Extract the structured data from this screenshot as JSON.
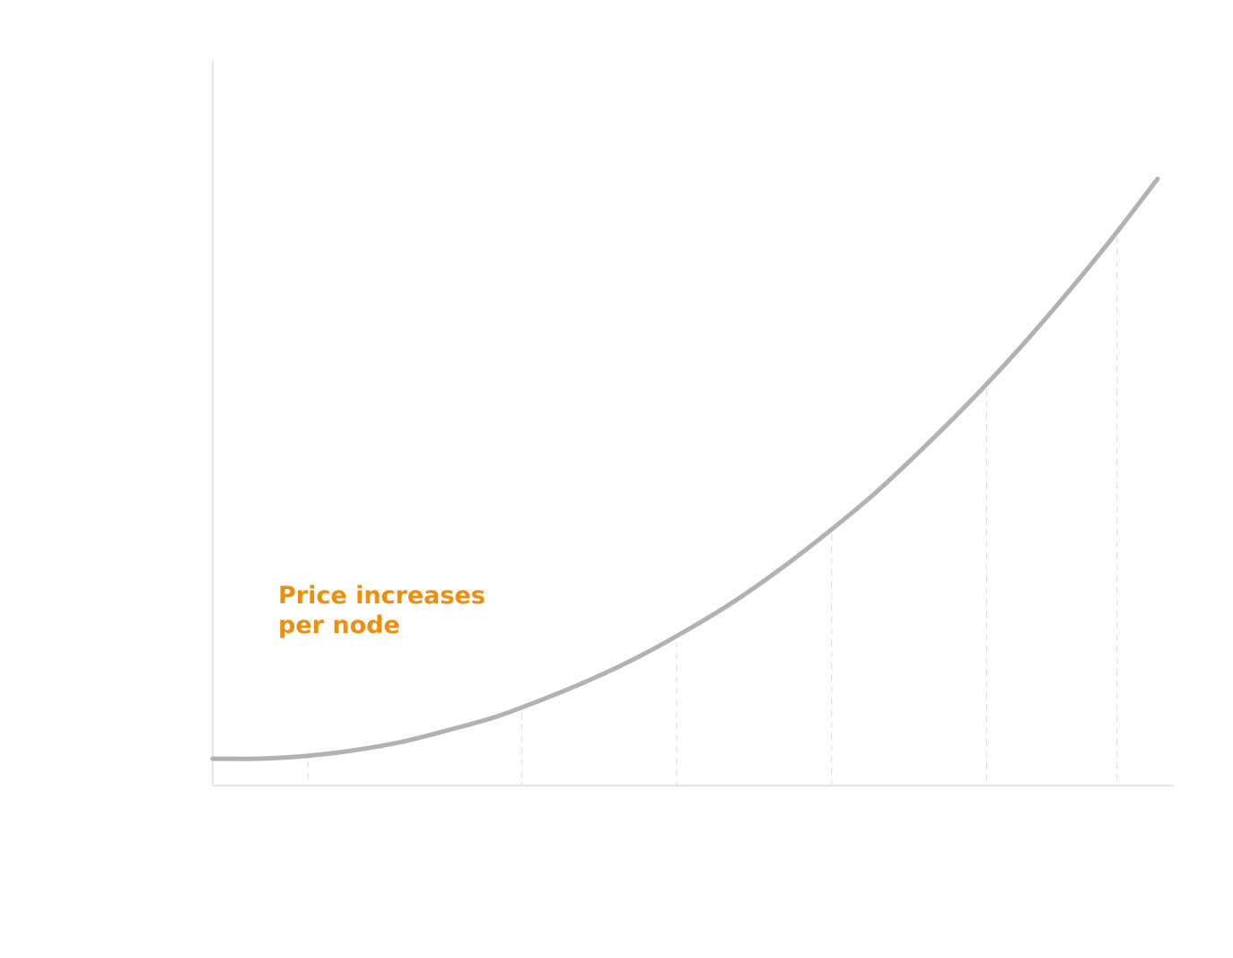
{
  "chart_data": {
    "type": "line",
    "title": "",
    "xlabel": "",
    "ylabel": "",
    "annotation": [
      "Price increases",
      "per node"
    ],
    "annotation_color": "#EE8E0E",
    "line_color": "#B2B2B2",
    "axis_color": "#E6E6E6",
    "guide_color": "#E0E0E0",
    "grid": false,
    "xlim": [
      0,
      1
    ],
    "ylim": [
      0,
      1
    ],
    "x": [
      0.0,
      0.05,
      0.1,
      0.15,
      0.2,
      0.25,
      0.3,
      0.35,
      0.4,
      0.45,
      0.5,
      0.55,
      0.6,
      0.65,
      0.7,
      0.75,
      0.8,
      0.85,
      0.9,
      0.95,
      1.0
    ],
    "series": [
      {
        "values": [
          0.0,
          0.0,
          0.004,
          0.012,
          0.024,
          0.041,
          0.06,
          0.085,
          0.113,
          0.145,
          0.182,
          0.223,
          0.27,
          0.322,
          0.378,
          0.441,
          0.508,
          0.58,
          0.658,
          0.74,
          0.828
        ]
      }
    ],
    "guides_x": [
      0.101,
      0.327,
      0.491,
      0.655,
      0.819,
      0.957
    ]
  }
}
